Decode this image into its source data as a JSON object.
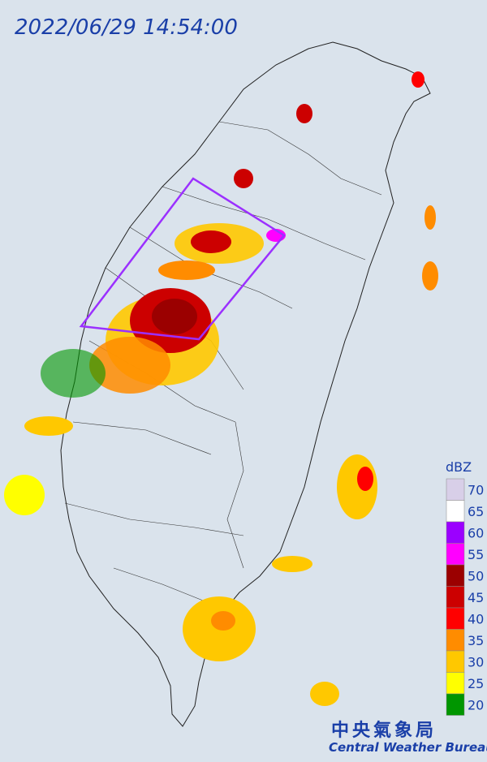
{
  "timestamp": "2022/06/29 14:54:00",
  "legend": {
    "unit": "dBZ",
    "items": [
      {
        "value": 70,
        "color": "#d8cfe8"
      },
      {
        "value": 65,
        "color": "#ffffff"
      },
      {
        "value": 60,
        "color": "#9b00ff"
      },
      {
        "value": 55,
        "color": "#ff00ff"
      },
      {
        "value": 50,
        "color": "#9b0000"
      },
      {
        "value": 45,
        "color": "#cc0000"
      },
      {
        "value": 40,
        "color": "#ff0000"
      },
      {
        "value": 35,
        "color": "#ff8c00"
      },
      {
        "value": 30,
        "color": "#ffc800"
      },
      {
        "value": 25,
        "color": "#ffff00"
      },
      {
        "value": 20,
        "color": "#009600"
      }
    ]
  },
  "agency": {
    "name_zh": "中央氣象局",
    "name_en": "Central Weather Bureau"
  }
}
